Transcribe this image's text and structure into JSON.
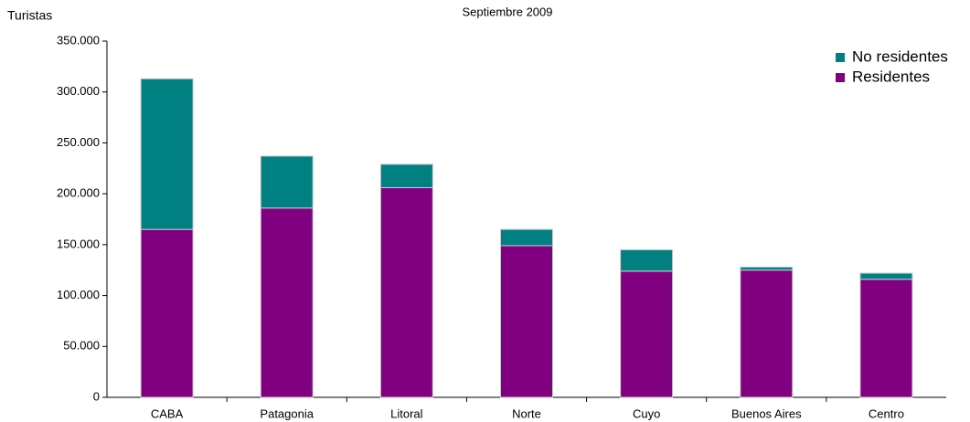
{
  "chart_data": {
    "type": "stacked_bar",
    "subtitle": "Septiembre 2009",
    "y_label": "Turistas",
    "categories": [
      "CABA",
      "Patagonia",
      "Litoral",
      "Norte",
      "Cuyo",
      "Buenos Aires",
      "Centro"
    ],
    "series": [
      {
        "name": "Residentes",
        "color": "#800080",
        "values": [
          165000,
          186000,
          206000,
          149000,
          124000,
          125000,
          116000
        ]
      },
      {
        "name": "No residentes",
        "color": "#008080",
        "values": [
          148000,
          51000,
          23000,
          16000,
          21000,
          3000,
          6000
        ]
      }
    ],
    "ylim": [
      0,
      350000
    ],
    "yticks": [
      0,
      {
        "value": 50000,
        "label": "50.000"
      },
      {
        "value": 100000,
        "label": "100.000"
      },
      {
        "value": 150000,
        "label": "150.000"
      },
      {
        "value": 200000,
        "label": "200.000"
      },
      {
        "value": 250000,
        "label": "250.000"
      },
      {
        "value": 300000,
        "label": "300.000"
      },
      {
        "value": 350000,
        "label": "350.000"
      }
    ],
    "legend": "top-right"
  }
}
